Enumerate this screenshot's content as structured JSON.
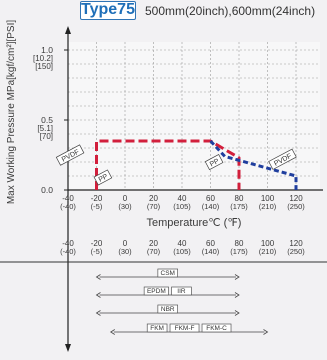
{
  "header": {
    "type_label": "Type75",
    "size_text": "500mm(20inch),600mm(24inch)"
  },
  "colors": {
    "pvdf_line": "#d21f3c",
    "pp_line": "#1f3e9e",
    "grid": "#9a9a9a",
    "badge": "#2f74b5"
  },
  "chart_data": {
    "type": "line",
    "title": "",
    "xlabel": "Temperature℃ (℉)",
    "ylabel": "Max Working Pressure MPa[kgf/cm²][PSI]",
    "xlim": [
      -40,
      130
    ],
    "ylim": [
      0,
      1.2
    ],
    "grid": true,
    "x_ticks": [
      {
        "c": "-40",
        "f": "(-40)"
      },
      {
        "c": "-20",
        "f": "(-5)"
      },
      {
        "c": "0",
        "f": "(30)"
      },
      {
        "c": "20",
        "f": "(70)"
      },
      {
        "c": "40",
        "f": "(105)"
      },
      {
        "c": "60",
        "f": "(140)"
      },
      {
        "c": "80",
        "f": "(175)"
      },
      {
        "c": "100",
        "f": "(210)"
      },
      {
        "c": "120",
        "f": "(250)"
      }
    ],
    "y_ticks": [
      {
        "mpa": "1.0",
        "kgf": "[10.2]",
        "psi": "[150]"
      },
      {
        "mpa": "0.5",
        "kgf": "[5.1]",
        "psi": "[70]"
      },
      {
        "mpa": "0.0",
        "kgf": "",
        "psi": ""
      }
    ],
    "series": [
      {
        "name": "PVDF",
        "x": [
          -20,
          -20,
          60,
          80,
          80
        ],
        "y": [
          0,
          0.35,
          0.35,
          0.23,
          0
        ]
      },
      {
        "name": "PP",
        "x": [
          60,
          70,
          120,
          120
        ],
        "y": [
          0.35,
          0.24,
          0.1,
          0
        ]
      }
    ],
    "labels": [
      {
        "text": "PVDF",
        "series": "PVDF",
        "at": [
          -38,
          0.24
        ]
      },
      {
        "text": "PP",
        "series": "PP",
        "at": [
          -15,
          0.08
        ]
      },
      {
        "text": "PP",
        "series": "PP",
        "at": [
          63,
          0.19
        ]
      },
      {
        "text": "PVDF",
        "series": "PVDF",
        "at": [
          111,
          0.21
        ]
      }
    ],
    "seal_materials": [
      {
        "labels": [
          "CSM"
        ],
        "range": [
          -20,
          80
        ]
      },
      {
        "labels": [
          "EPDM",
          "IIR"
        ],
        "range": [
          -20,
          80
        ]
      },
      {
        "labels": [
          "NBR"
        ],
        "range": [
          -20,
          80
        ]
      },
      {
        "labels": [
          "FKM",
          "FKM-F",
          "FKM-C"
        ],
        "range": [
          -10,
          100
        ]
      }
    ]
  }
}
